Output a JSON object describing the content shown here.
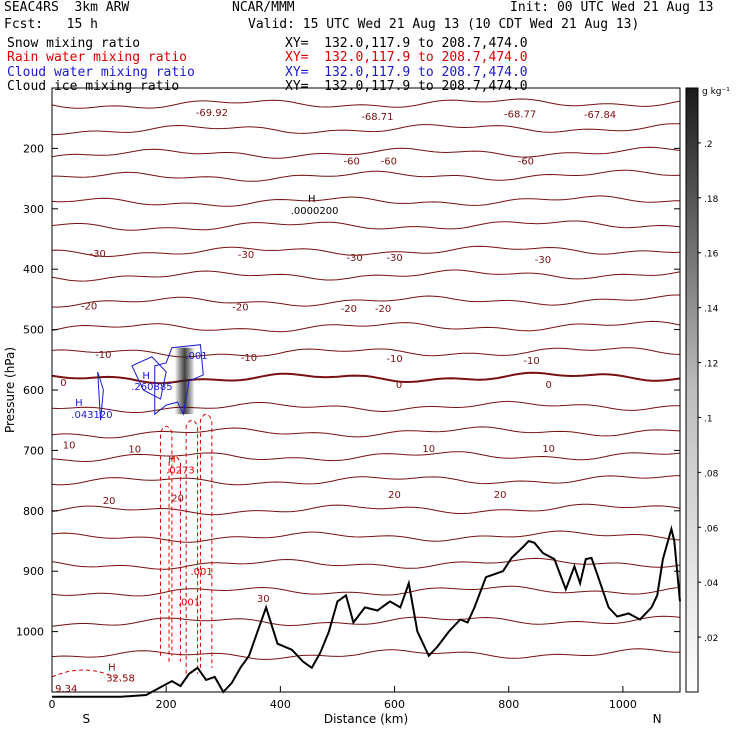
{
  "header": {
    "model": "SEAC4RS  3km ARW",
    "center": "NCAR/MMM",
    "init": "Init: 00 UTC Wed 21 Aug 13",
    "fcst": "Fcst:   15 h",
    "valid": "Valid: 15 UTC Wed 21 Aug 13 (10 CDT Wed 21 Aug 13)",
    "fields": [
      {
        "name": "Snow mixing ratio",
        "xy": "XY=  132.0,117.9 to 208.7,474.0",
        "color": "#000000"
      },
      {
        "name": "Rain water mixing ratio",
        "xy": "XY=  132.0,117.9 to 208.7,474.0",
        "color": "#e00000"
      },
      {
        "name": "Cloud water mixing ratio",
        "xy": "XY=  132.0,117.9 to 208.7,474.0",
        "color": "#1a1ad0"
      },
      {
        "name": "Cloud ice mixing ratio",
        "xy": "XY=  132.0,117.9 to 208.7,474.0",
        "color": "#000000"
      }
    ]
  },
  "chart_data": {
    "type": "cross-section contour",
    "xlabel": "Distance (km)",
    "ylabel": "Pressure (hPa)",
    "x_ticks": [
      "0",
      "200",
      "400",
      "600",
      "800",
      "1000"
    ],
    "y_ticks": [
      "200",
      "300",
      "400",
      "500",
      "600",
      "700",
      "800",
      "900",
      "1000"
    ],
    "x_ends": [
      "S",
      "N"
    ],
    "xlim": [
      0,
      1100
    ],
    "ylim": [
      1100,
      100
    ],
    "colorbar": {
      "unit": "g kg⁻¹",
      "ticks": [
        ".02",
        ".04",
        ".06",
        ".08",
        ".1",
        ".12",
        ".14",
        ".16",
        ".18",
        ".2"
      ]
    },
    "temperature_contour_labels": [
      {
        "text": "-69.92",
        "x": 280,
        "p": 140
      },
      {
        "text": "-68.71",
        "x": 570,
        "p": 146
      },
      {
        "text": "-68.77",
        "x": 820,
        "p": 142
      },
      {
        "text": "-67.84",
        "x": 960,
        "p": 143
      },
      {
        "text": "-60",
        "x": 525,
        "p": 220
      },
      {
        "text": "-60",
        "x": 590,
        "p": 220
      },
      {
        "text": "-60",
        "x": 830,
        "p": 220
      },
      {
        "text": "-30",
        "x": 80,
        "p": 373
      },
      {
        "text": "-30",
        "x": 340,
        "p": 375
      },
      {
        "text": "-30",
        "x": 530,
        "p": 380
      },
      {
        "text": "-30",
        "x": 600,
        "p": 380
      },
      {
        "text": "-30",
        "x": 860,
        "p": 383
      },
      {
        "text": "-20",
        "x": 65,
        "p": 460
      },
      {
        "text": "-20",
        "x": 330,
        "p": 462
      },
      {
        "text": "-20",
        "x": 520,
        "p": 464
      },
      {
        "text": "-20",
        "x": 580,
        "p": 464
      },
      {
        "text": "-10",
        "x": 90,
        "p": 540
      },
      {
        "text": "-10",
        "x": 345,
        "p": 545
      },
      {
        "text": "-10",
        "x": 600,
        "p": 547
      },
      {
        "text": "-10",
        "x": 840,
        "p": 550
      },
      {
        "text": "0",
        "x": 20,
        "p": 587
      },
      {
        "text": "0",
        "x": 608,
        "p": 590
      },
      {
        "text": "0",
        "x": 870,
        "p": 590
      },
      {
        "text": "10",
        "x": 30,
        "p": 690
      },
      {
        "text": "10",
        "x": 145,
        "p": 697
      },
      {
        "text": "10",
        "x": 660,
        "p": 696
      },
      {
        "text": "10",
        "x": 870,
        "p": 696
      },
      {
        "text": "20",
        "x": 100,
        "p": 782
      },
      {
        "text": "20",
        "x": 220,
        "p": 778
      },
      {
        "text": "20",
        "x": 600,
        "p": 772
      },
      {
        "text": "20",
        "x": 785,
        "p": 772
      },
      {
        "text": "30",
        "x": 370,
        "p": 944
      }
    ],
    "extrema_labels": [
      {
        "text": "H",
        "x": 455,
        "p": 282,
        "color": "#000000"
      },
      {
        "text": ".0000200",
        "x": 460,
        "p": 302,
        "color": "#000000"
      },
      {
        "text": "H",
        "x": 165,
        "p": 575,
        "color": "#1a1ad0"
      },
      {
        "text": ".260885",
        "x": 175,
        "p": 593,
        "color": "#1a1ad0"
      },
      {
        "text": ".001",
        "x": 253,
        "p": 542,
        "color": "#1a1ad0"
      },
      {
        "text": "H",
        "x": 47,
        "p": 620,
        "color": "#1a1ad0"
      },
      {
        "text": ".043120",
        "x": 70,
        "p": 640,
        "color": "#1a1ad0"
      },
      {
        "text": "H",
        "x": 210,
        "p": 713,
        "color": "#e00000"
      },
      {
        "text": ".0273",
        "x": 225,
        "p": 732,
        "color": "#e00000"
      },
      {
        "text": ".001",
        "x": 262,
        "p": 900,
        "color": "#e00000"
      },
      {
        "text": ".001",
        "x": 240,
        "p": 950,
        "color": "#e00000"
      },
      {
        "text": "H",
        "x": 105,
        "p": 1058,
        "color": "#8b0000"
      },
      {
        "text": "32.58",
        "x": 120,
        "p": 1076,
        "color": "#8b0000"
      },
      {
        "text": "9.34",
        "x": 25,
        "p": 1093,
        "color": "#8b0000"
      }
    ],
    "terrain_p": [
      [
        0,
        1108
      ],
      [
        120,
        1108
      ],
      [
        165,
        1105
      ],
      [
        190,
        1092
      ],
      [
        210,
        1082
      ],
      [
        225,
        1090
      ],
      [
        240,
        1070
      ],
      [
        255,
        1060
      ],
      [
        270,
        1080
      ],
      [
        285,
        1075
      ],
      [
        300,
        1100
      ],
      [
        315,
        1085
      ],
      [
        330,
        1060
      ],
      [
        345,
        1040
      ],
      [
        360,
        1000
      ],
      [
        375,
        960
      ],
      [
        395,
        1020
      ],
      [
        420,
        1030
      ],
      [
        440,
        1050
      ],
      [
        455,
        1060
      ],
      [
        470,
        1035
      ],
      [
        485,
        1000
      ],
      [
        500,
        950
      ],
      [
        515,
        940
      ],
      [
        528,
        985
      ],
      [
        548,
        960
      ],
      [
        570,
        965
      ],
      [
        592,
        950
      ],
      [
        610,
        960
      ],
      [
        625,
        920
      ],
      [
        640,
        1000
      ],
      [
        660,
        1040
      ],
      [
        675,
        1025
      ],
      [
        695,
        1000
      ],
      [
        715,
        980
      ],
      [
        728,
        985
      ],
      [
        740,
        960
      ],
      [
        760,
        910
      ],
      [
        790,
        900
      ],
      [
        805,
        878
      ],
      [
        825,
        860
      ],
      [
        835,
        850
      ],
      [
        845,
        853
      ],
      [
        860,
        870
      ],
      [
        880,
        880
      ],
      [
        900,
        930
      ],
      [
        915,
        892
      ],
      [
        925,
        920
      ],
      [
        935,
        880
      ],
      [
        945,
        878
      ],
      [
        955,
        905
      ],
      [
        975,
        960
      ],
      [
        990,
        975
      ],
      [
        1010,
        970
      ],
      [
        1030,
        980
      ],
      [
        1050,
        960
      ],
      [
        1060,
        940
      ],
      [
        1070,
        880
      ],
      [
        1085,
        830
      ],
      [
        1090,
        850
      ],
      [
        1100,
        950
      ]
    ]
  }
}
